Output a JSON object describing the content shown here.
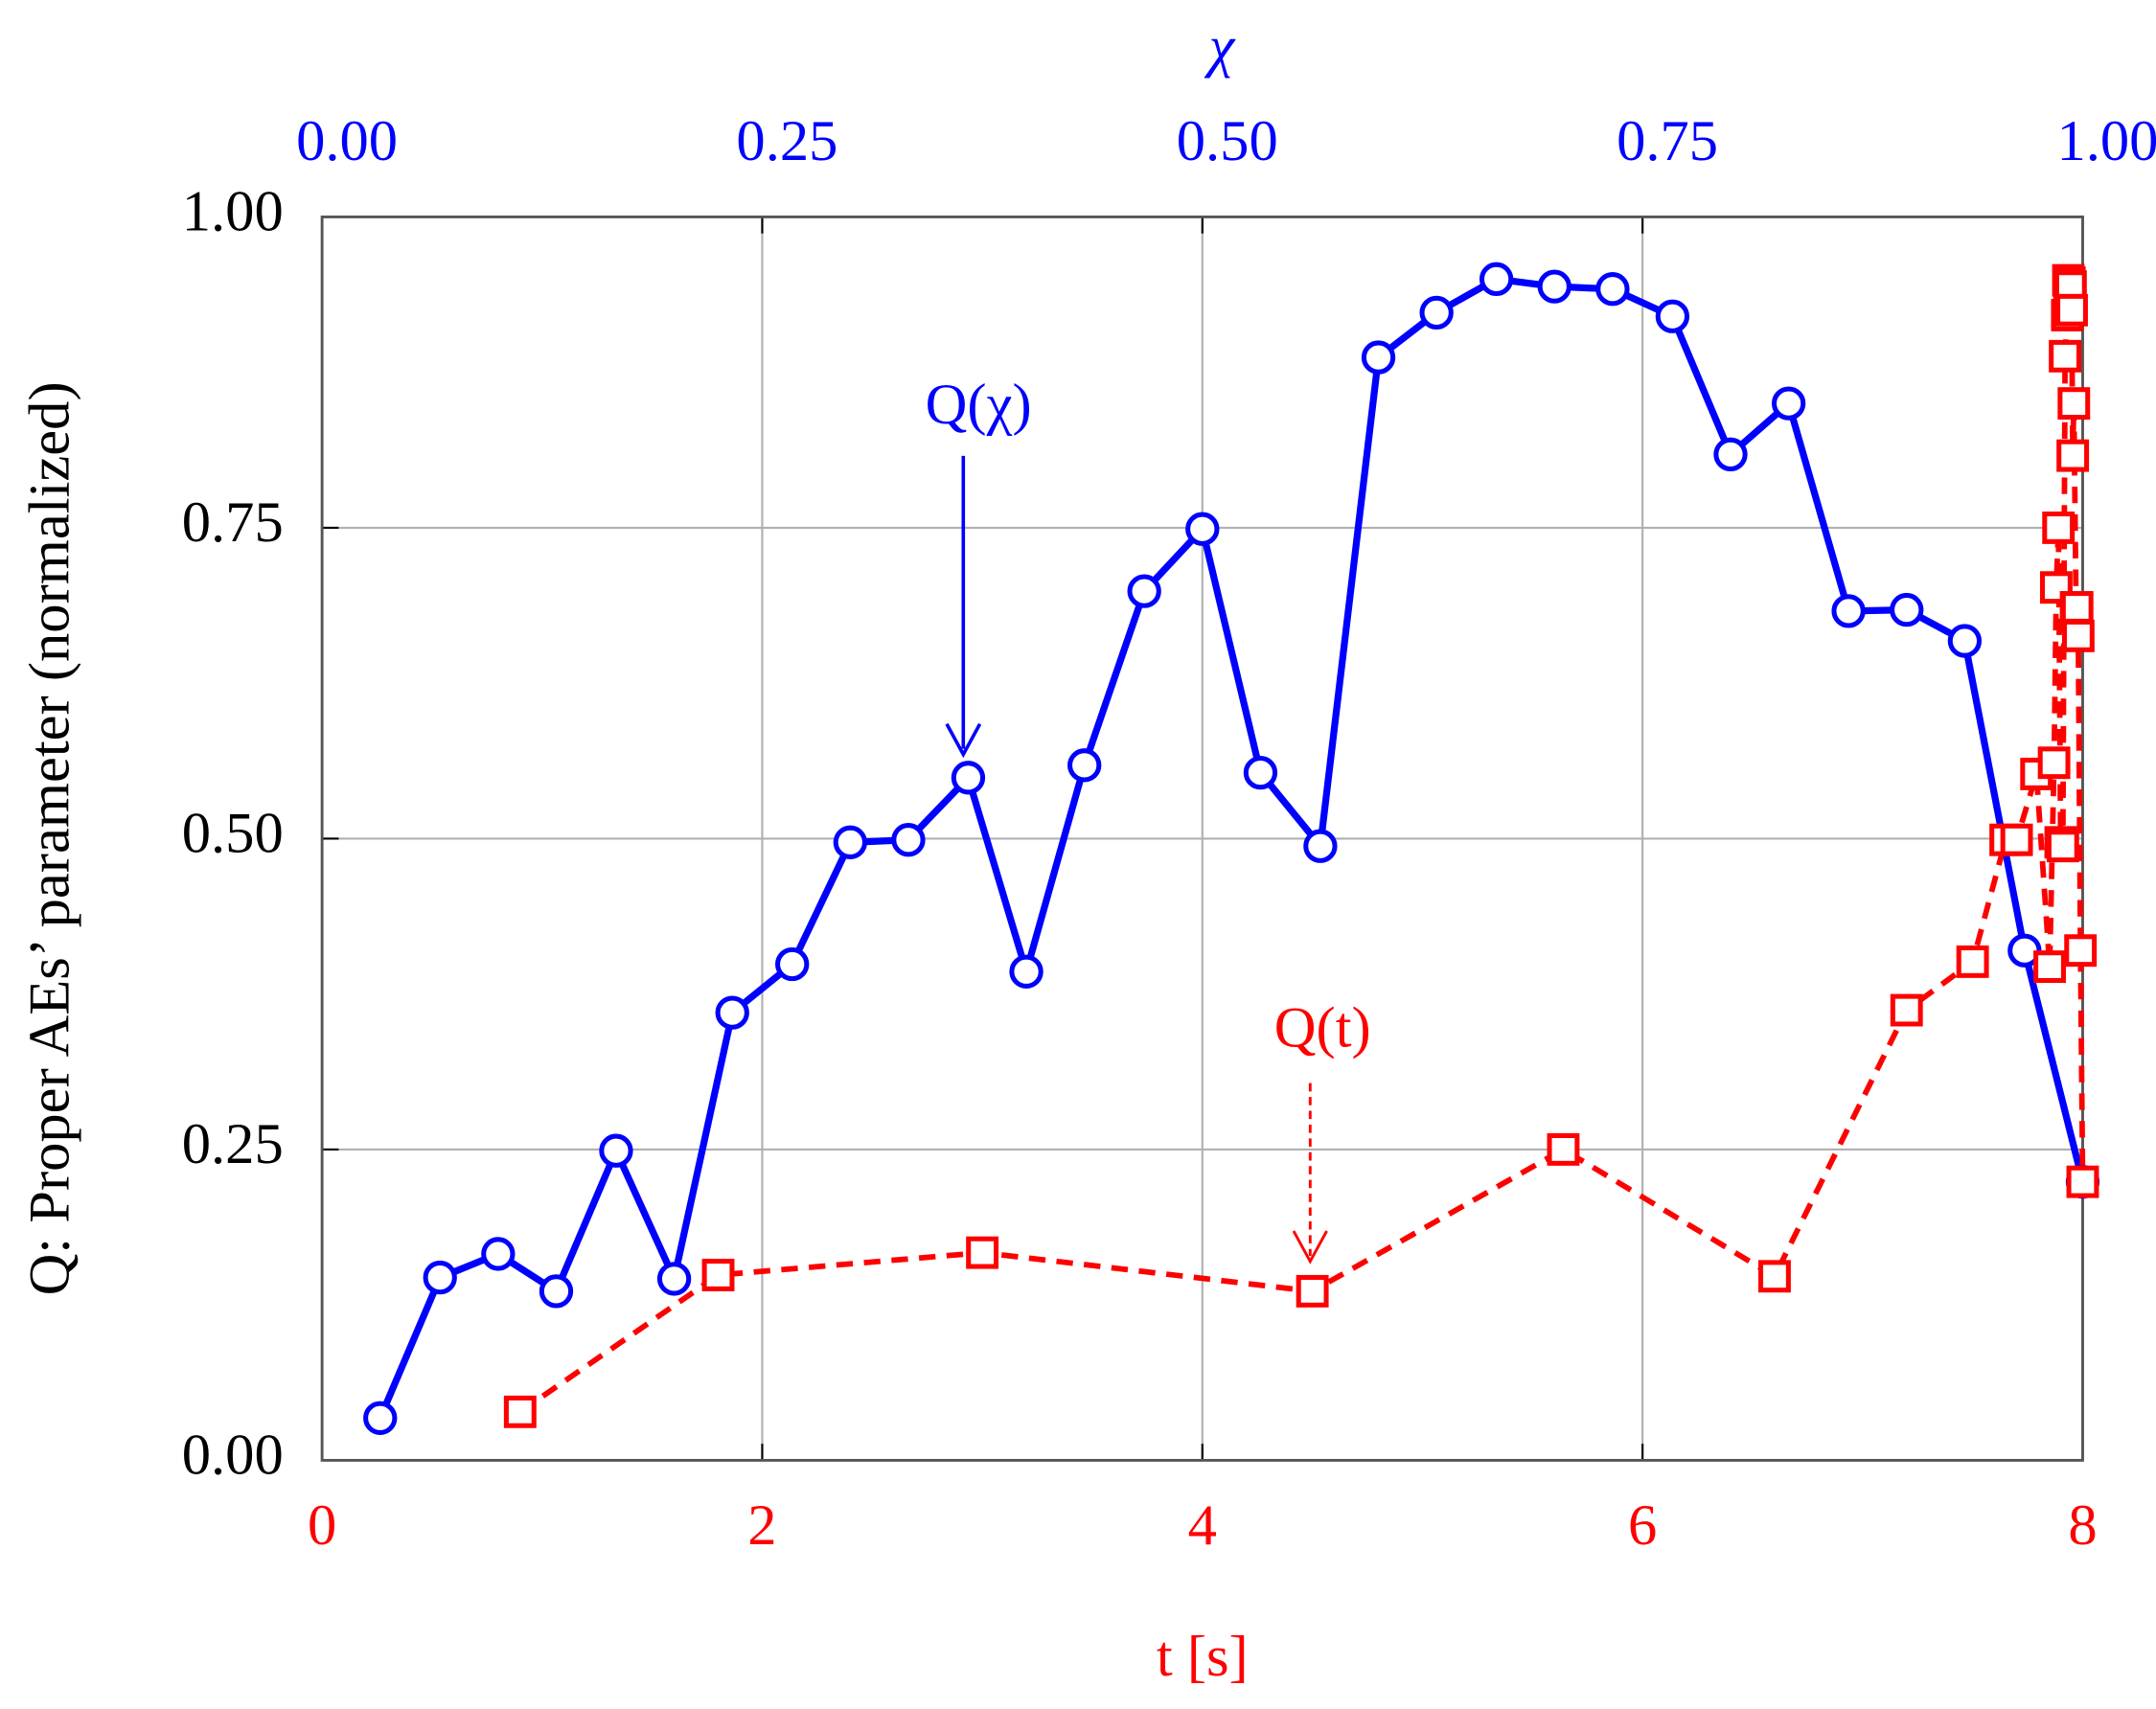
{
  "chart_data": {
    "type": "line",
    "xlabel": "t [s]",
    "x2label": "χ",
    "ylabel": "Q: Proper AEs’ parameter (normalized)",
    "xlim": [
      0,
      8
    ],
    "xticks": [
      0,
      2,
      4,
      6,
      8
    ],
    "x2lim": [
      0,
      1
    ],
    "x2ticks": [
      {
        "value": 0,
        "label": "0.00"
      },
      {
        "value": 0.25,
        "label": "0.25"
      },
      {
        "value": 0.5,
        "label": "0.50"
      },
      {
        "value": 0.75,
        "label": "0.75"
      },
      {
        "value": 1,
        "label": "1.00"
      }
    ],
    "ylim": [
      0,
      1
    ],
    "yticks": [
      {
        "value": 0,
        "label": "0.00"
      },
      {
        "value": 0.25,
        "label": "0.25"
      },
      {
        "value": 0.5,
        "label": "0.50"
      },
      {
        "value": 0.75,
        "label": "0.75"
      },
      {
        "value": 1,
        "label": "1.00"
      }
    ],
    "grid": true,
    "series": [
      {
        "name": "Q(χ)",
        "color": "#0000ff",
        "axis": "x2",
        "marker": "circle",
        "dashed": false,
        "x": [
          0.033,
          0.067,
          0.1,
          0.133,
          0.167,
          0.2,
          0.233,
          0.267,
          0.3,
          0.333,
          0.367,
          0.4,
          0.433,
          0.467,
          0.5,
          0.533,
          0.567,
          0.6,
          0.633,
          0.667,
          0.7,
          0.733,
          0.767,
          0.8,
          0.833,
          0.867,
          0.9,
          0.933,
          0.967,
          1.0
        ],
        "values": [
          0.034,
          0.147,
          0.166,
          0.136,
          0.249,
          0.146,
          0.36,
          0.399,
          0.497,
          0.499,
          0.549,
          0.393,
          0.559,
          0.699,
          0.749,
          0.553,
          0.494,
          0.887,
          0.923,
          0.95,
          0.944,
          0.942,
          0.92,
          0.809,
          0.85,
          0.683,
          0.684,
          0.659,
          0.41,
          0.224
        ]
      },
      {
        "name": "Q(t)",
        "color": "#ff0000",
        "axis": "x",
        "marker": "square",
        "dashed": true,
        "x": [
          0.9,
          1.8,
          3.0,
          4.5,
          5.64,
          6.6,
          7.2,
          7.5,
          7.65,
          7.7,
          7.79,
          7.85,
          7.87,
          7.88,
          7.89,
          7.9,
          7.91,
          7.92,
          7.93,
          7.935,
          7.94,
          7.945,
          7.95,
          7.955,
          7.96,
          7.97,
          7.975,
          7.98,
          7.99,
          8.0
        ],
        "values": [
          0.039,
          0.149,
          0.167,
          0.136,
          0.25,
          0.148,
          0.362,
          0.401,
          0.499,
          0.499,
          0.552,
          0.397,
          0.561,
          0.702,
          0.75,
          0.497,
          0.494,
          0.888,
          0.921,
          0.949,
          0.947,
          0.944,
          0.925,
          0.808,
          0.85,
          0.686,
          0.686,
          0.663,
          0.41,
          0.224
        ]
      }
    ]
  }
}
